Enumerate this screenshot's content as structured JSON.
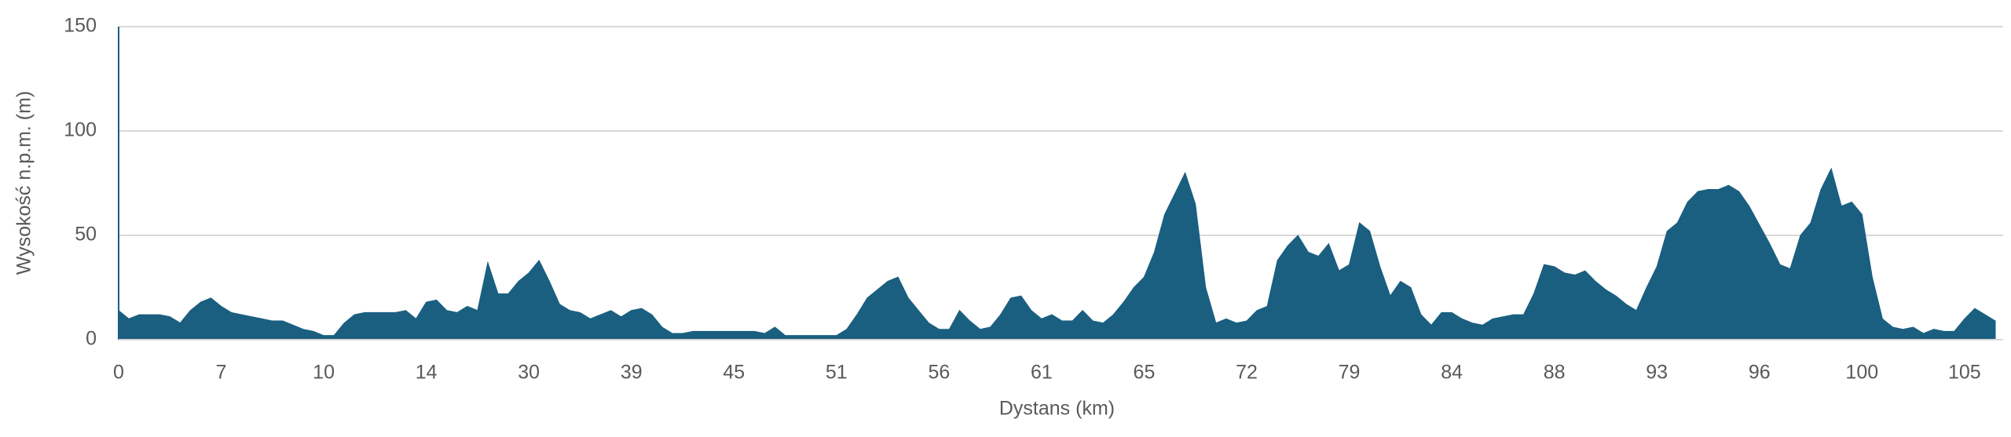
{
  "chart_data": {
    "type": "area",
    "x_label": "Dystans (km)",
    "y_label": "Wysokość n.p.m. (m)",
    "color": "#1a5f80",
    "grid": true,
    "ylim": [
      0,
      150
    ],
    "yticks": [
      0,
      50,
      100,
      150
    ],
    "categories": [
      "0",
      null,
      null,
      null,
      null,
      null,
      null,
      null,
      null,
      null,
      "7",
      null,
      null,
      null,
      null,
      null,
      null,
      null,
      null,
      null,
      "10",
      null,
      null,
      null,
      null,
      null,
      null,
      null,
      null,
      null,
      "14",
      null,
      null,
      null,
      null,
      null,
      null,
      null,
      null,
      null,
      "30",
      null,
      null,
      null,
      null,
      null,
      null,
      null,
      null,
      null,
      "39",
      null,
      null,
      null,
      null,
      null,
      null,
      null,
      null,
      null,
      "45",
      null,
      null,
      null,
      null,
      null,
      null,
      null,
      null,
      null,
      "51",
      null,
      null,
      null,
      null,
      null,
      null,
      null,
      null,
      null,
      "56",
      null,
      null,
      null,
      null,
      null,
      null,
      null,
      null,
      null,
      "61",
      null,
      null,
      null,
      null,
      null,
      null,
      null,
      null,
      null,
      "65",
      null,
      null,
      null,
      null,
      null,
      null,
      null,
      null,
      null,
      "72",
      null,
      null,
      null,
      null,
      null,
      null,
      null,
      null,
      null,
      "79",
      null,
      null,
      null,
      null,
      null,
      null,
      null,
      null,
      null,
      "84",
      null,
      null,
      null,
      null,
      null,
      null,
      null,
      null,
      null,
      "88",
      null,
      null,
      null,
      null,
      null,
      null,
      null,
      null,
      null,
      "93",
      null,
      null,
      null,
      null,
      null,
      null,
      null,
      null,
      null,
      "96",
      null,
      null,
      null,
      null,
      null,
      null,
      null,
      null,
      null,
      "100",
      null,
      null,
      null,
      null,
      null,
      null,
      null,
      null,
      null,
      "105",
      null,
      null,
      null
    ],
    "values": [
      14,
      10,
      12,
      12,
      12,
      11,
      8,
      14,
      18,
      20,
      16,
      13,
      12,
      11,
      10,
      9,
      9,
      7,
      5,
      4,
      2,
      2,
      8,
      12,
      13,
      13,
      13,
      13,
      14,
      10,
      18,
      19,
      14,
      13,
      16,
      14,
      37,
      22,
      22,
      28,
      32,
      38,
      28,
      17,
      14,
      13,
      10,
      12,
      14,
      11,
      14,
      15,
      12,
      6,
      3,
      3,
      4,
      4,
      4,
      4,
      4,
      4,
      4,
      3,
      6,
      2,
      2,
      2,
      2,
      2,
      2,
      5,
      12,
      20,
      24,
      28,
      30,
      20,
      14,
      8,
      5,
      5,
      14,
      9,
      5,
      6,
      12,
      20,
      21,
      14,
      10,
      12,
      9,
      9,
      14,
      9,
      8,
      12,
      18,
      25,
      30,
      42,
      60,
      70,
      80,
      65,
      25,
      8,
      10,
      8,
      9,
      14,
      16,
      38,
      45,
      50,
      42,
      40,
      46,
      33,
      36,
      56,
      52,
      35,
      21,
      28,
      25,
      12,
      7,
      13,
      13,
      10,
      8,
      7,
      10,
      11,
      12,
      12,
      22,
      36,
      35,
      32,
      31,
      33,
      28,
      24,
      21,
      17,
      14,
      25,
      35,
      52,
      56,
      66,
      71,
      72,
      72,
      74,
      71,
      64,
      55,
      46,
      36,
      34,
      50,
      56,
      72,
      82,
      64,
      66,
      60,
      30,
      10,
      6,
      5,
      6,
      3,
      5,
      4,
      4,
      10,
      15,
      12,
      9
    ]
  }
}
